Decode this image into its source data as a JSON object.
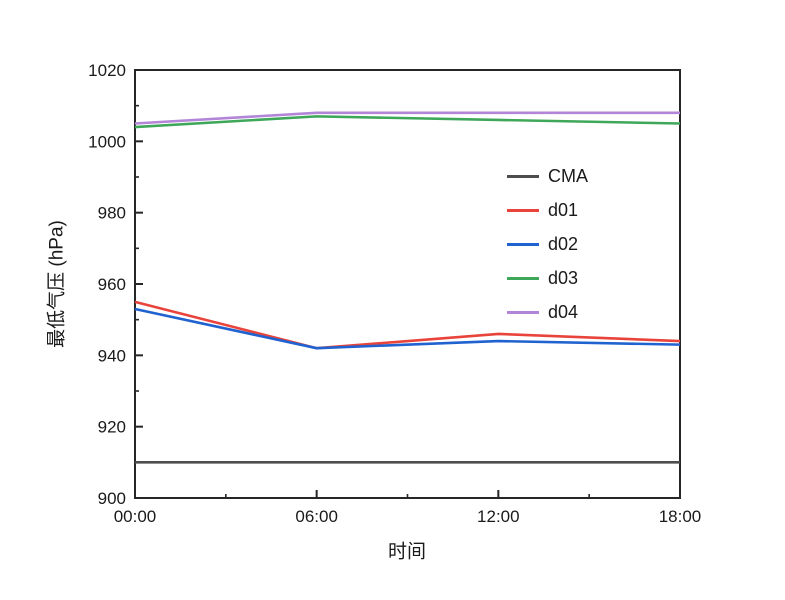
{
  "chart_data": {
    "type": "line",
    "title": "",
    "xlabel": "时间",
    "ylabel": "最低气压 (hPa)",
    "categories": [
      "00:00",
      "06:00",
      "12:00",
      "18:00"
    ],
    "ylim": [
      900,
      1020
    ],
    "y_major_step": 20,
    "y_minor_step": 10,
    "grid": false,
    "legend_position": "inside-center-right",
    "series": [
      {
        "name": "CMA",
        "color": "#4d4d4d",
        "values": [
          910,
          910,
          910,
          910
        ]
      },
      {
        "name": "d01",
        "color": "#e8443c",
        "values": [
          955,
          942,
          946,
          944
        ]
      },
      {
        "name": "d02",
        "color": "#2062cf",
        "values": [
          953,
          942,
          944,
          943
        ]
      },
      {
        "name": "d03",
        "color": "#3fa75a",
        "values": [
          1004,
          1007,
          1006,
          1005
        ]
      },
      {
        "name": "d04",
        "color": "#b285d8",
        "values": [
          1005,
          1008,
          1008,
          1008
        ]
      }
    ]
  }
}
